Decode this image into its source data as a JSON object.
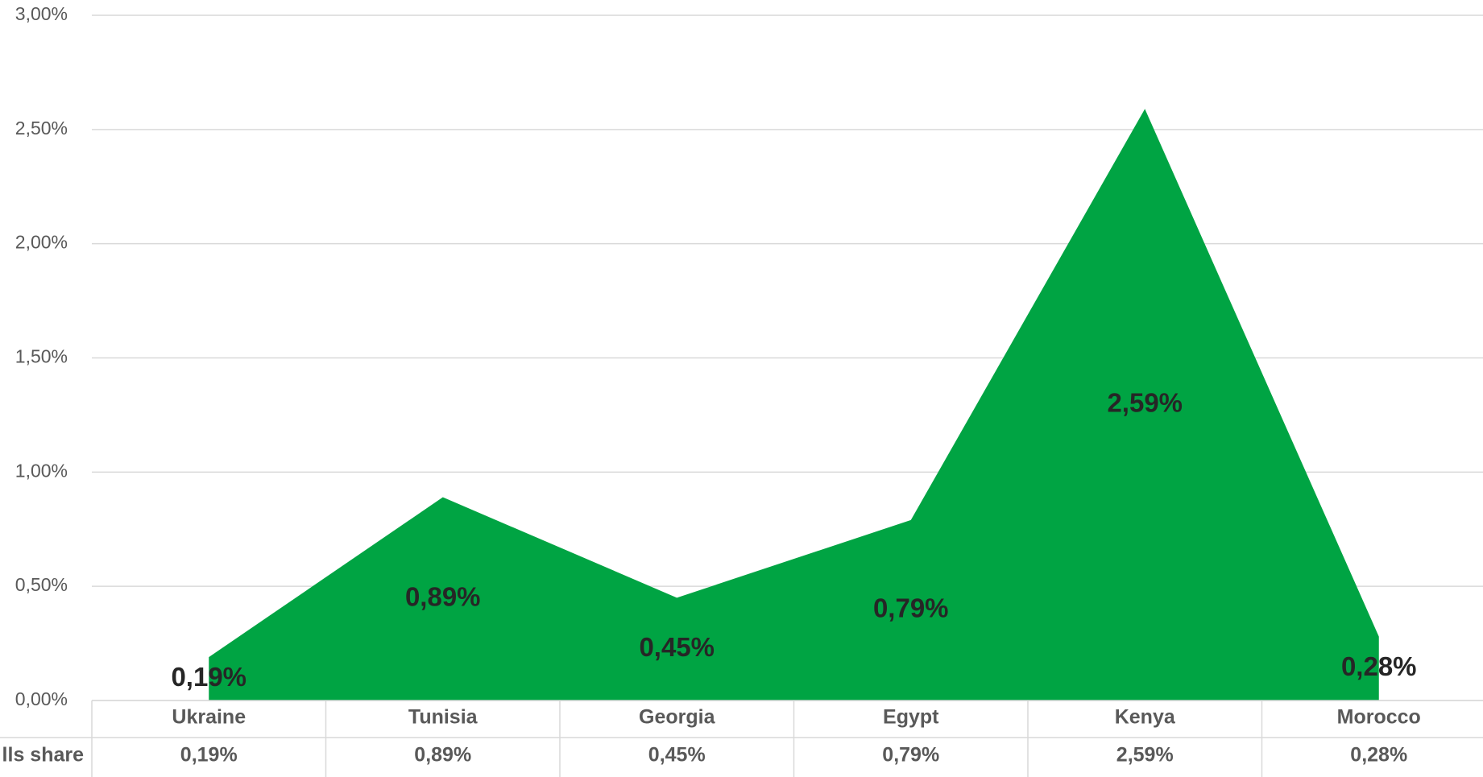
{
  "chart_data": {
    "type": "area",
    "categories": [
      "Ukraine",
      "Tunisia",
      "Georgia",
      "Egypt",
      "Kenya",
      "Morocco"
    ],
    "series": [
      {
        "name": "lls share",
        "color": "#00a443",
        "values": [
          0.19,
          0.89,
          0.45,
          0.79,
          2.59,
          0.28
        ],
        "value_labels": [
          "0,19%",
          "0,89%",
          "0,45%",
          "0,79%",
          "2,59%",
          "0,28%"
        ]
      }
    ],
    "ylim": [
      0,
      3
    ],
    "yticks": [
      {
        "value": 0,
        "label": "0,00%"
      },
      {
        "value": 0.5,
        "label": "0,50%"
      },
      {
        "value": 1,
        "label": "1,00%"
      },
      {
        "value": 1.5,
        "label": "1,50%"
      },
      {
        "value": 2,
        "label": "2,00%"
      },
      {
        "value": 2.5,
        "label": "2,50%"
      },
      {
        "value": 3,
        "label": "3,00%"
      }
    ],
    "grid": true
  }
}
